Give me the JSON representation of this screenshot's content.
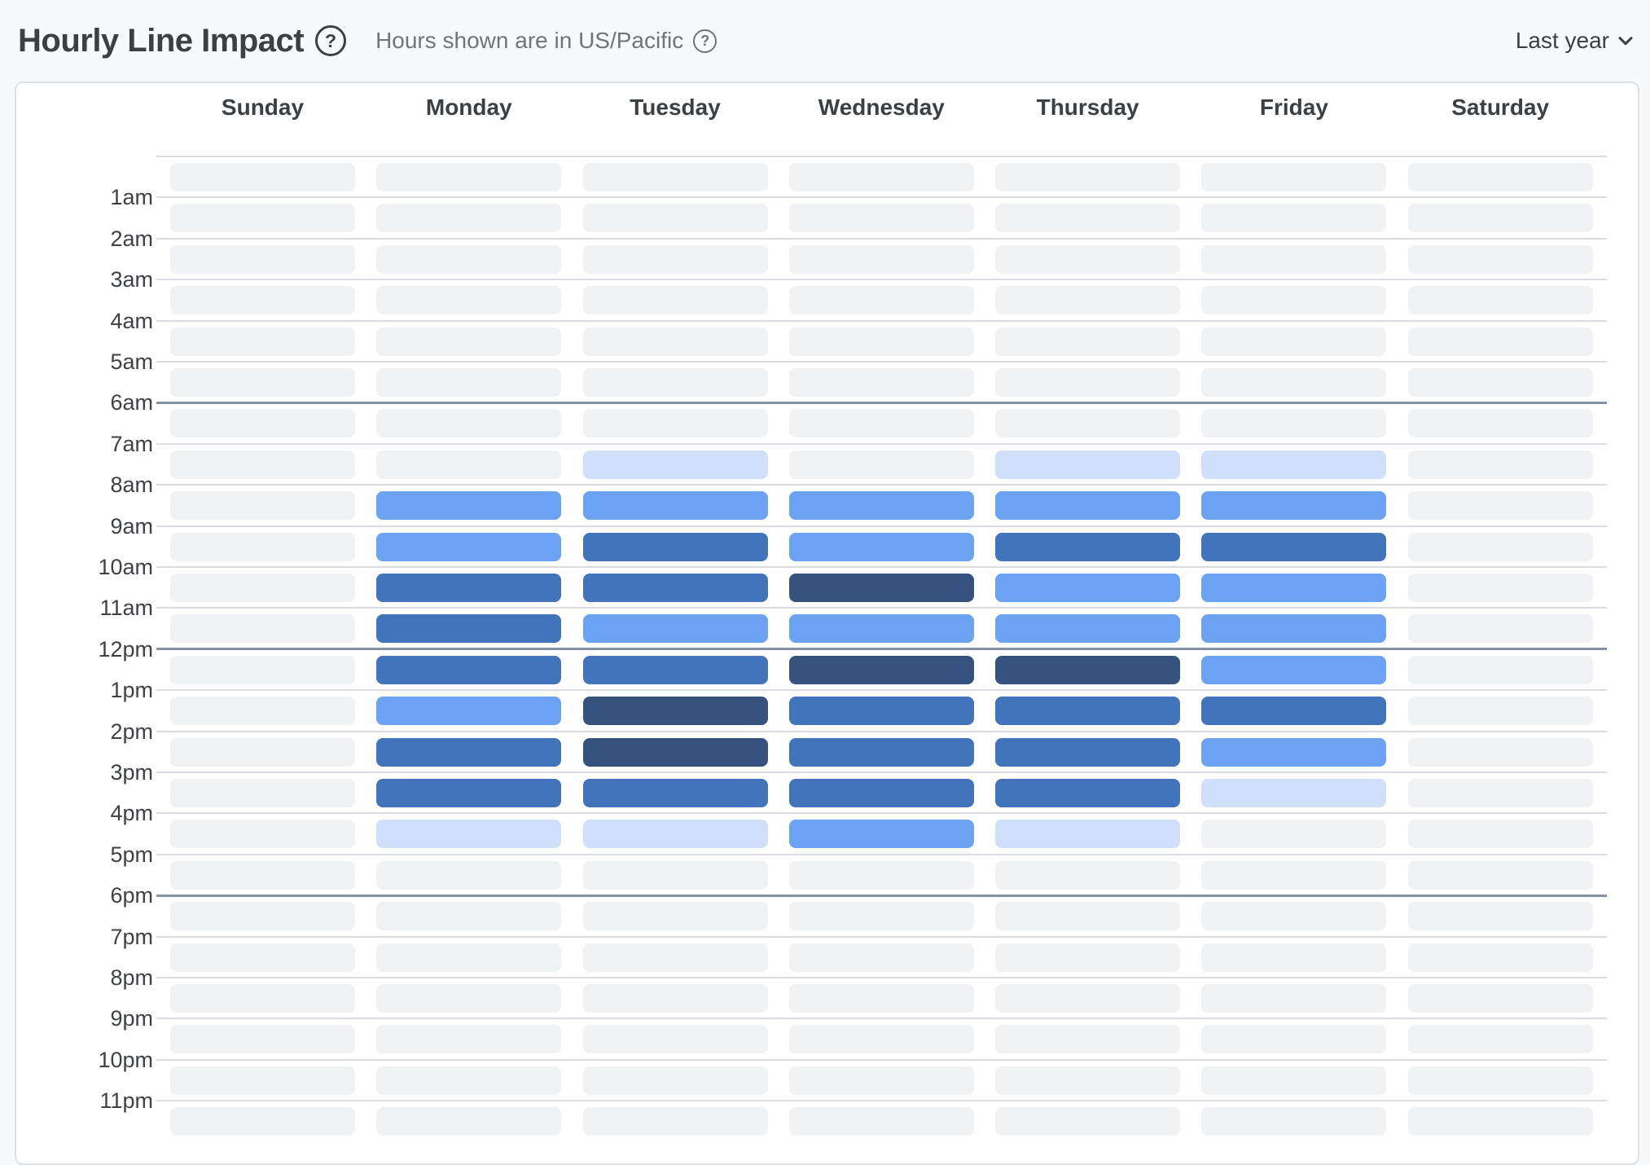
{
  "header": {
    "title": "Hourly Line Impact",
    "title_help_icon": "question-circle-icon",
    "subtitle": "Hours shown are in US/Pacific",
    "subtitle_help_icon": "question-circle-icon",
    "range_label": "Last year",
    "range_icon": "chevron-down-icon"
  },
  "chart_data": {
    "type": "heatmap",
    "title": "Hourly Line Impact",
    "timezone_note": "Hours shown are in US/Pacific",
    "time_range": "Last year",
    "columns": [
      "Sunday",
      "Monday",
      "Tuesday",
      "Wednesday",
      "Thursday",
      "Friday",
      "Saturday"
    ],
    "hour_line_labels": [
      "1am",
      "2am",
      "3am",
      "4am",
      "5am",
      "6am",
      "7am",
      "8am",
      "9am",
      "10am",
      "11am",
      "12pm",
      "1pm",
      "2pm",
      "3pm",
      "4pm",
      "5pm",
      "6pm",
      "7pm",
      "8pm",
      "9pm",
      "10pm",
      "11pm"
    ],
    "emphasized_lines": [
      "6am",
      "12pm",
      "6pm"
    ],
    "n_rows": 24,
    "intensity_levels": 5,
    "intensity_colors": [
      "#f1f2f4",
      "#d0e0fb",
      "#6ba2f2",
      "#4274bc",
      "#35537e"
    ],
    "intensity_matrix": [
      [
        0,
        0,
        0,
        0,
        0,
        0,
        0
      ],
      [
        0,
        0,
        0,
        0,
        0,
        0,
        0
      ],
      [
        0,
        0,
        0,
        0,
        0,
        0,
        0
      ],
      [
        0,
        0,
        0,
        0,
        0,
        0,
        0
      ],
      [
        0,
        0,
        0,
        0,
        0,
        0,
        0
      ],
      [
        0,
        0,
        0,
        0,
        0,
        0,
        0
      ],
      [
        0,
        0,
        0,
        0,
        0,
        0,
        0
      ],
      [
        0,
        0,
        1,
        0,
        1,
        1,
        0
      ],
      [
        0,
        2,
        2,
        2,
        2,
        2,
        0
      ],
      [
        0,
        2,
        3,
        2,
        3,
        3,
        0
      ],
      [
        0,
        3,
        3,
        4,
        2,
        2,
        0
      ],
      [
        0,
        3,
        2,
        2,
        2,
        2,
        0
      ],
      [
        0,
        3,
        3,
        4,
        4,
        2,
        0
      ],
      [
        0,
        2,
        4,
        3,
        3,
        3,
        0
      ],
      [
        0,
        3,
        4,
        3,
        3,
        2,
        0
      ],
      [
        0,
        3,
        3,
        3,
        3,
        1,
        0
      ],
      [
        0,
        1,
        1,
        2,
        1,
        0,
        0
      ],
      [
        0,
        0,
        0,
        0,
        0,
        0,
        0
      ],
      [
        0,
        0,
        0,
        0,
        0,
        0,
        0
      ],
      [
        0,
        0,
        0,
        0,
        0,
        0,
        0
      ],
      [
        0,
        0,
        0,
        0,
        0,
        0,
        0
      ],
      [
        0,
        0,
        0,
        0,
        0,
        0,
        0
      ],
      [
        0,
        0,
        0,
        0,
        0,
        0,
        0
      ],
      [
        0,
        0,
        0,
        0,
        0,
        0,
        0
      ]
    ],
    "gridline_color": "#d9dde3",
    "emphasized_gridline_color": "#8692a2",
    "legend_position": "none"
  },
  "colors": {
    "page_background": "#f8f9fa",
    "card_background": "#ffffff",
    "card_border": "#dde0e4",
    "title_text": "#3c4043",
    "subtitle_text": "#70757a",
    "label_text": "#3f4245"
  }
}
